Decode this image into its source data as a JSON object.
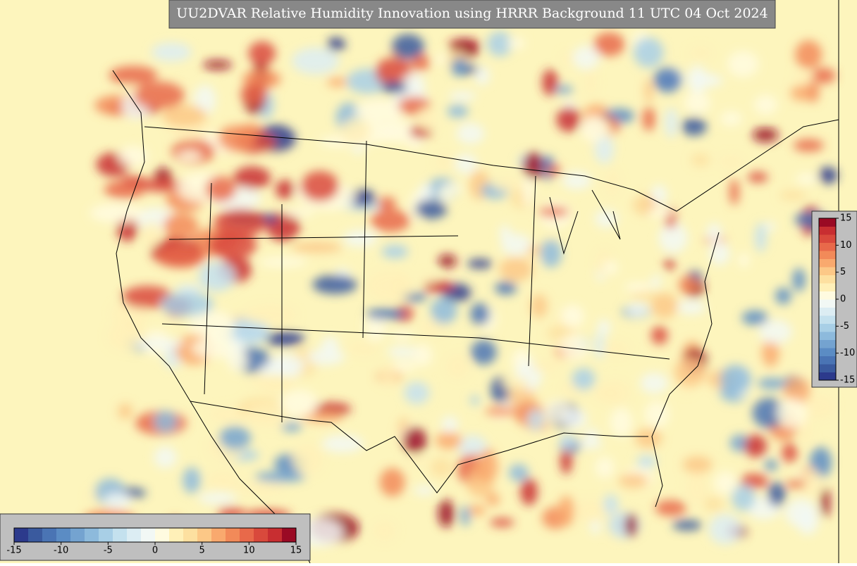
{
  "title": "UU2DVAR Relative Humidity Innovation using HRRR Background 11 UTC 04 Oct 2024",
  "colorbar": {
    "range": [
      -15,
      15
    ],
    "ticks": [
      -15,
      -10,
      -5,
      0,
      5,
      10,
      15
    ],
    "colors": [
      "#2c3a8c",
      "#3a5a9e",
      "#4a74b4",
      "#5b8cc4",
      "#74a3d0",
      "#8dbadc",
      "#a8cfe6",
      "#c4e1ee",
      "#dcedf3",
      "#f2f8f5",
      "#fffbe0",
      "#fff0b8",
      "#fde0a0",
      "#fcc887",
      "#f9a96e",
      "#f28a59",
      "#e8694a",
      "#d9493c",
      "#c82e31",
      "#9a0a24"
    ]
  }
}
